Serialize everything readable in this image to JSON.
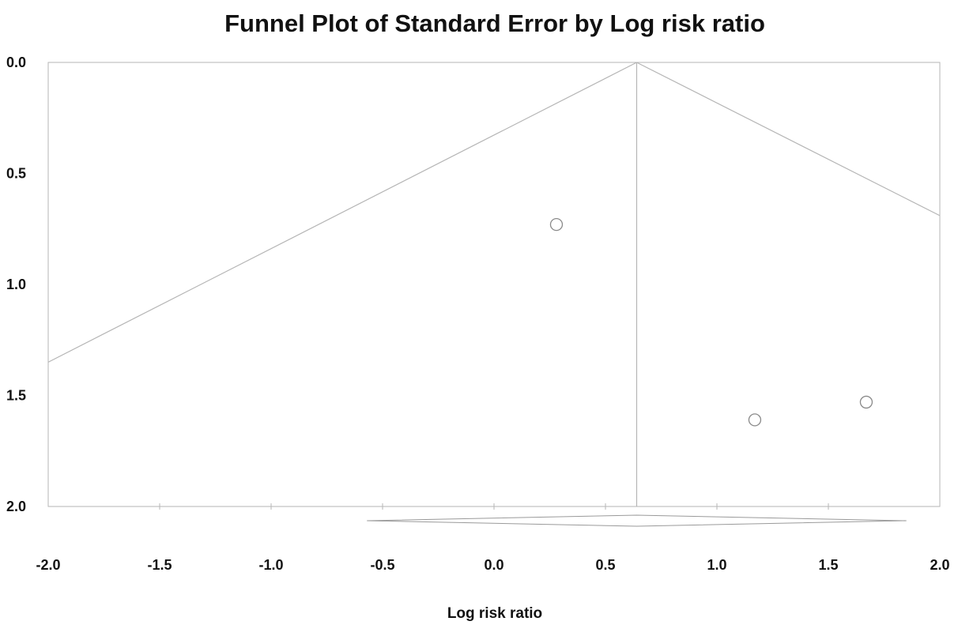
{
  "chart_data": {
    "type": "scatter",
    "title": "Funnel Plot of Standard Error by Log risk ratio",
    "xlabel": "Log risk ratio",
    "ylabel": "",
    "xlim": [
      -2.0,
      2.0
    ],
    "ylim": [
      0.0,
      2.0
    ],
    "y_inverted": true,
    "x_ticks": [
      "-2.0",
      "-1.5",
      "-1.0",
      "-0.5",
      "0.0",
      "0.5",
      "1.0",
      "1.5",
      "2.0"
    ],
    "y_ticks": [
      "0.0",
      "0.5",
      "1.0",
      "1.5",
      "2.0"
    ],
    "grid": false,
    "points": [
      {
        "x": 0.28,
        "y": 0.73
      },
      {
        "x": 1.17,
        "y": 1.61
      },
      {
        "x": 1.67,
        "y": 1.53
      }
    ],
    "pooled_estimate": 0.64,
    "funnel_left_edge": {
      "x": -2.0,
      "y": 1.35
    },
    "funnel_right_edge": {
      "x": 2.0,
      "y": 0.69
    },
    "summary_diamond": {
      "lower": -0.57,
      "center": 0.64,
      "upper": 1.85
    },
    "colors": {
      "axis": "#b5b5b5",
      "marker": "#8a8a8a",
      "text": "#111111"
    }
  }
}
